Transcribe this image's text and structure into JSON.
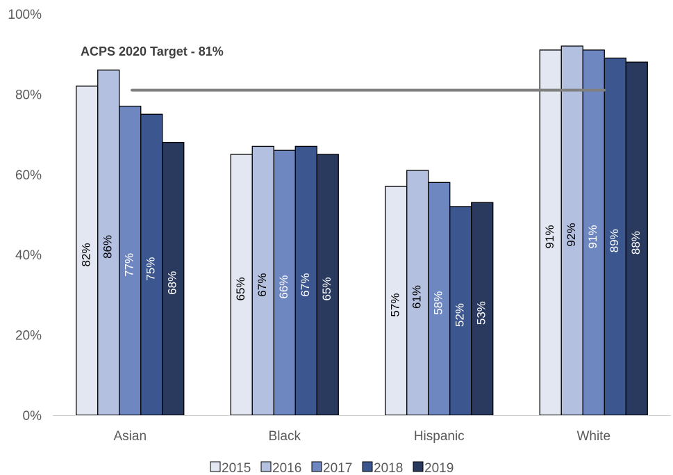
{
  "chart_data": {
    "type": "bar",
    "categories": [
      "Asian",
      "Black",
      "Hispanic",
      "White"
    ],
    "series": [
      {
        "name": "2015",
        "color": "#e3e7f2",
        "label_color": "#000000",
        "values": [
          82,
          65,
          57,
          91
        ]
      },
      {
        "name": "2016",
        "color": "#b4c0e0",
        "label_color": "#000000",
        "values": [
          86,
          67,
          61,
          92
        ]
      },
      {
        "name": "2017",
        "color": "#6f87c0",
        "label_color": "#ffffff",
        "values": [
          77,
          66,
          58,
          91
        ]
      },
      {
        "name": "2018",
        "color": "#3c5790",
        "label_color": "#ffffff",
        "values": [
          75,
          67,
          52,
          89
        ]
      },
      {
        "name": "2019",
        "color": "#2a3a5e",
        "label_color": "#ffffff",
        "values": [
          68,
          65,
          53,
          88
        ]
      }
    ],
    "data_labels": [
      [
        "82%",
        "65%",
        "57%",
        "91%"
      ],
      [
        "86%",
        "67%",
        "61%",
        "92%"
      ],
      [
        "77%",
        "66%",
        "58%",
        "91%"
      ],
      [
        "75%",
        "67%",
        "52%",
        "89%"
      ],
      [
        "68%",
        "65%",
        "53%",
        "88%"
      ]
    ],
    "ylim": [
      0,
      100
    ],
    "yticks": [
      0,
      20,
      40,
      60,
      80,
      100
    ],
    "ytick_labels": [
      "0%",
      "20%",
      "40%",
      "60%",
      "80%",
      "100%"
    ],
    "target": {
      "value": 81,
      "label": "ACPS 2020 Target - 81%",
      "color": "#808080"
    },
    "legend_position": "bottom",
    "grid": false
  }
}
